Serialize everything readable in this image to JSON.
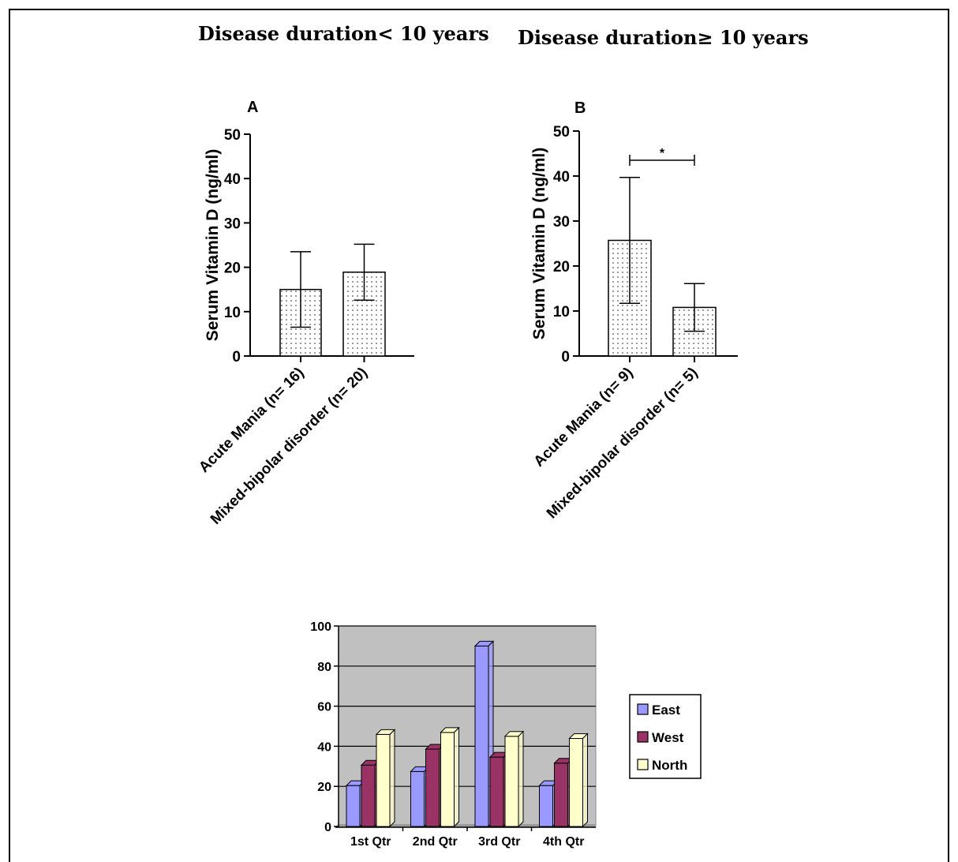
{
  "headings": {
    "left": "Disease duration< 10 years",
    "right": "Disease duration≥ 10 years"
  },
  "colors": {
    "east": "#9999ff",
    "west": "#993366",
    "north": "#ffffcc",
    "plot_area": "#c0c0c0"
  },
  "chart_data": [
    {
      "type": "bar",
      "panel_label": "A",
      "ylabel": "Serum Vitamin D (ng/ml)",
      "ylim": [
        0,
        50
      ],
      "yticks": [
        "0",
        "10",
        "20",
        "30",
        "40",
        "50"
      ],
      "categories": [
        "Acute Mania (n= 16)",
        "Mixed-bipolar disorder (n= 20)"
      ],
      "values": [
        15,
        18.9
      ],
      "errors": [
        8.5,
        6.3
      ],
      "significance": ""
    },
    {
      "type": "bar",
      "panel_label": "B",
      "ylabel": "Serum Vitamin D (ng/ml)",
      "ylim": [
        0,
        50
      ],
      "yticks": [
        "0",
        "10",
        "20",
        "30",
        "40",
        "50"
      ],
      "categories": [
        "Acute Mania (n= 9)",
        "Mixed-bipolar disorder (n= 5)"
      ],
      "values": [
        25.7,
        10.8
      ],
      "errors": [
        14,
        5.3
      ],
      "significance": "*"
    },
    {
      "type": "bar",
      "ylim": [
        0,
        100
      ],
      "yticks": [
        "0",
        "20",
        "40",
        "60",
        "80",
        "100"
      ],
      "categories": [
        "1st Qtr",
        "2nd Qtr",
        "3rd Qtr",
        "4th Qtr"
      ],
      "series": [
        {
          "name": "East",
          "values": [
            20.4,
            27.4,
            90,
            20.4
          ]
        },
        {
          "name": "West",
          "values": [
            30.6,
            38.6,
            34.6,
            31.6
          ]
        },
        {
          "name": "North",
          "values": [
            45.9,
            46.9,
            45,
            43.9
          ]
        }
      ],
      "legend": "right",
      "grid": true
    }
  ]
}
